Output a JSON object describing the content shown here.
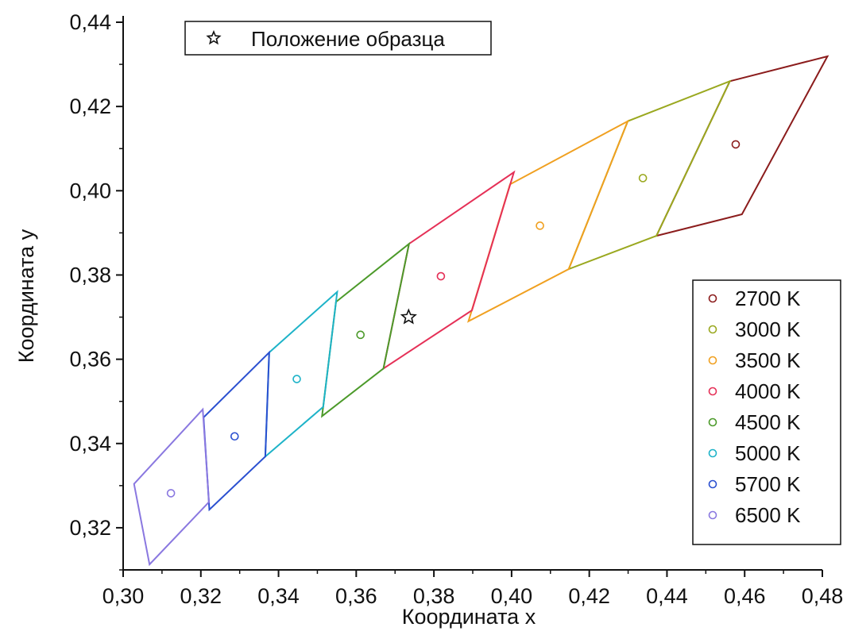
{
  "chart_data": {
    "type": "scatter",
    "xlabel": "Координата x",
    "ylabel": "Координата y",
    "xlim": [
      0.3,
      0.48
    ],
    "ylim": [
      0.31,
      0.44
    ],
    "x_ticks": [
      "0,30",
      "0,32",
      "0,34",
      "0,36",
      "0,38",
      "0,40",
      "0,42",
      "0,44",
      "0,46",
      "0,48"
    ],
    "y_ticks": [
      "0,32",
      "0,34",
      "0,36",
      "0,38",
      "0,40",
      "0,42",
      "0,44"
    ],
    "x_tick_values": [
      0.3,
      0.32,
      0.34,
      0.36,
      0.38,
      0.4,
      0.42,
      0.44,
      0.46,
      0.48
    ],
    "y_tick_values": [
      0.32,
      0.34,
      0.36,
      0.38,
      0.4,
      0.42,
      0.44
    ],
    "grid": false,
    "sample": {
      "label": "Положение образца",
      "x": 0.3735,
      "y": 0.37,
      "marker": "star-icon",
      "legend": "top-left"
    },
    "legend_position": "right",
    "series": [
      {
        "name": "2700 K",
        "color": "#8b1c1c",
        "center": [
          0.4577,
          0.411
        ],
        "quad": [
          [
            0.4813,
            0.4319
          ],
          [
            0.4562,
            0.426
          ],
          [
            0.4373,
            0.3893
          ],
          [
            0.4593,
            0.3944
          ]
        ]
      },
      {
        "name": "3000 K",
        "color": "#9aa81f",
        "center": [
          0.4338,
          0.403
        ],
        "quad": [
          [
            0.4562,
            0.426
          ],
          [
            0.4299,
            0.4165
          ],
          [
            0.4147,
            0.3814
          ],
          [
            0.4373,
            0.3893
          ]
        ]
      },
      {
        "name": "3500 K",
        "color": "#f0a020",
        "center": [
          0.4073,
          0.3917
        ],
        "quad": [
          [
            0.4299,
            0.4165
          ],
          [
            0.3996,
            0.4015
          ],
          [
            0.3889,
            0.369
          ],
          [
            0.4147,
            0.3814
          ]
        ]
      },
      {
        "name": "4000 K",
        "color": "#e53057",
        "center": [
          0.3818,
          0.3797
        ],
        "quad": [
          [
            0.4006,
            0.4044
          ],
          [
            0.3736,
            0.3874
          ],
          [
            0.367,
            0.3578
          ],
          [
            0.3898,
            0.3716
          ]
        ]
      },
      {
        "name": "4500 K",
        "color": "#4c9a2a",
        "center": [
          0.3611,
          0.3658
        ],
        "quad": [
          [
            0.3736,
            0.3874
          ],
          [
            0.3548,
            0.3736
          ],
          [
            0.3512,
            0.3465
          ],
          [
            0.367,
            0.3578
          ]
        ]
      },
      {
        "name": "5000 K",
        "color": "#1eb3c8",
        "center": [
          0.3447,
          0.3553
        ],
        "quad": [
          [
            0.3551,
            0.376
          ],
          [
            0.3376,
            0.3616
          ],
          [
            0.3366,
            0.3369
          ],
          [
            0.3515,
            0.3487
          ]
        ]
      },
      {
        "name": "5700 K",
        "color": "#2a4fd0",
        "center": [
          0.3287,
          0.3417
        ],
        "quad": [
          [
            0.3376,
            0.3616
          ],
          [
            0.3207,
            0.3462
          ],
          [
            0.3222,
            0.3243
          ],
          [
            0.3366,
            0.3369
          ]
        ]
      },
      {
        "name": "6500 K",
        "color": "#8a78e0",
        "center": [
          0.3123,
          0.3282
        ],
        "quad": [
          [
            0.3205,
            0.3481
          ],
          [
            0.3028,
            0.3304
          ],
          [
            0.3068,
            0.3113
          ],
          [
            0.3221,
            0.3261
          ]
        ]
      }
    ]
  }
}
